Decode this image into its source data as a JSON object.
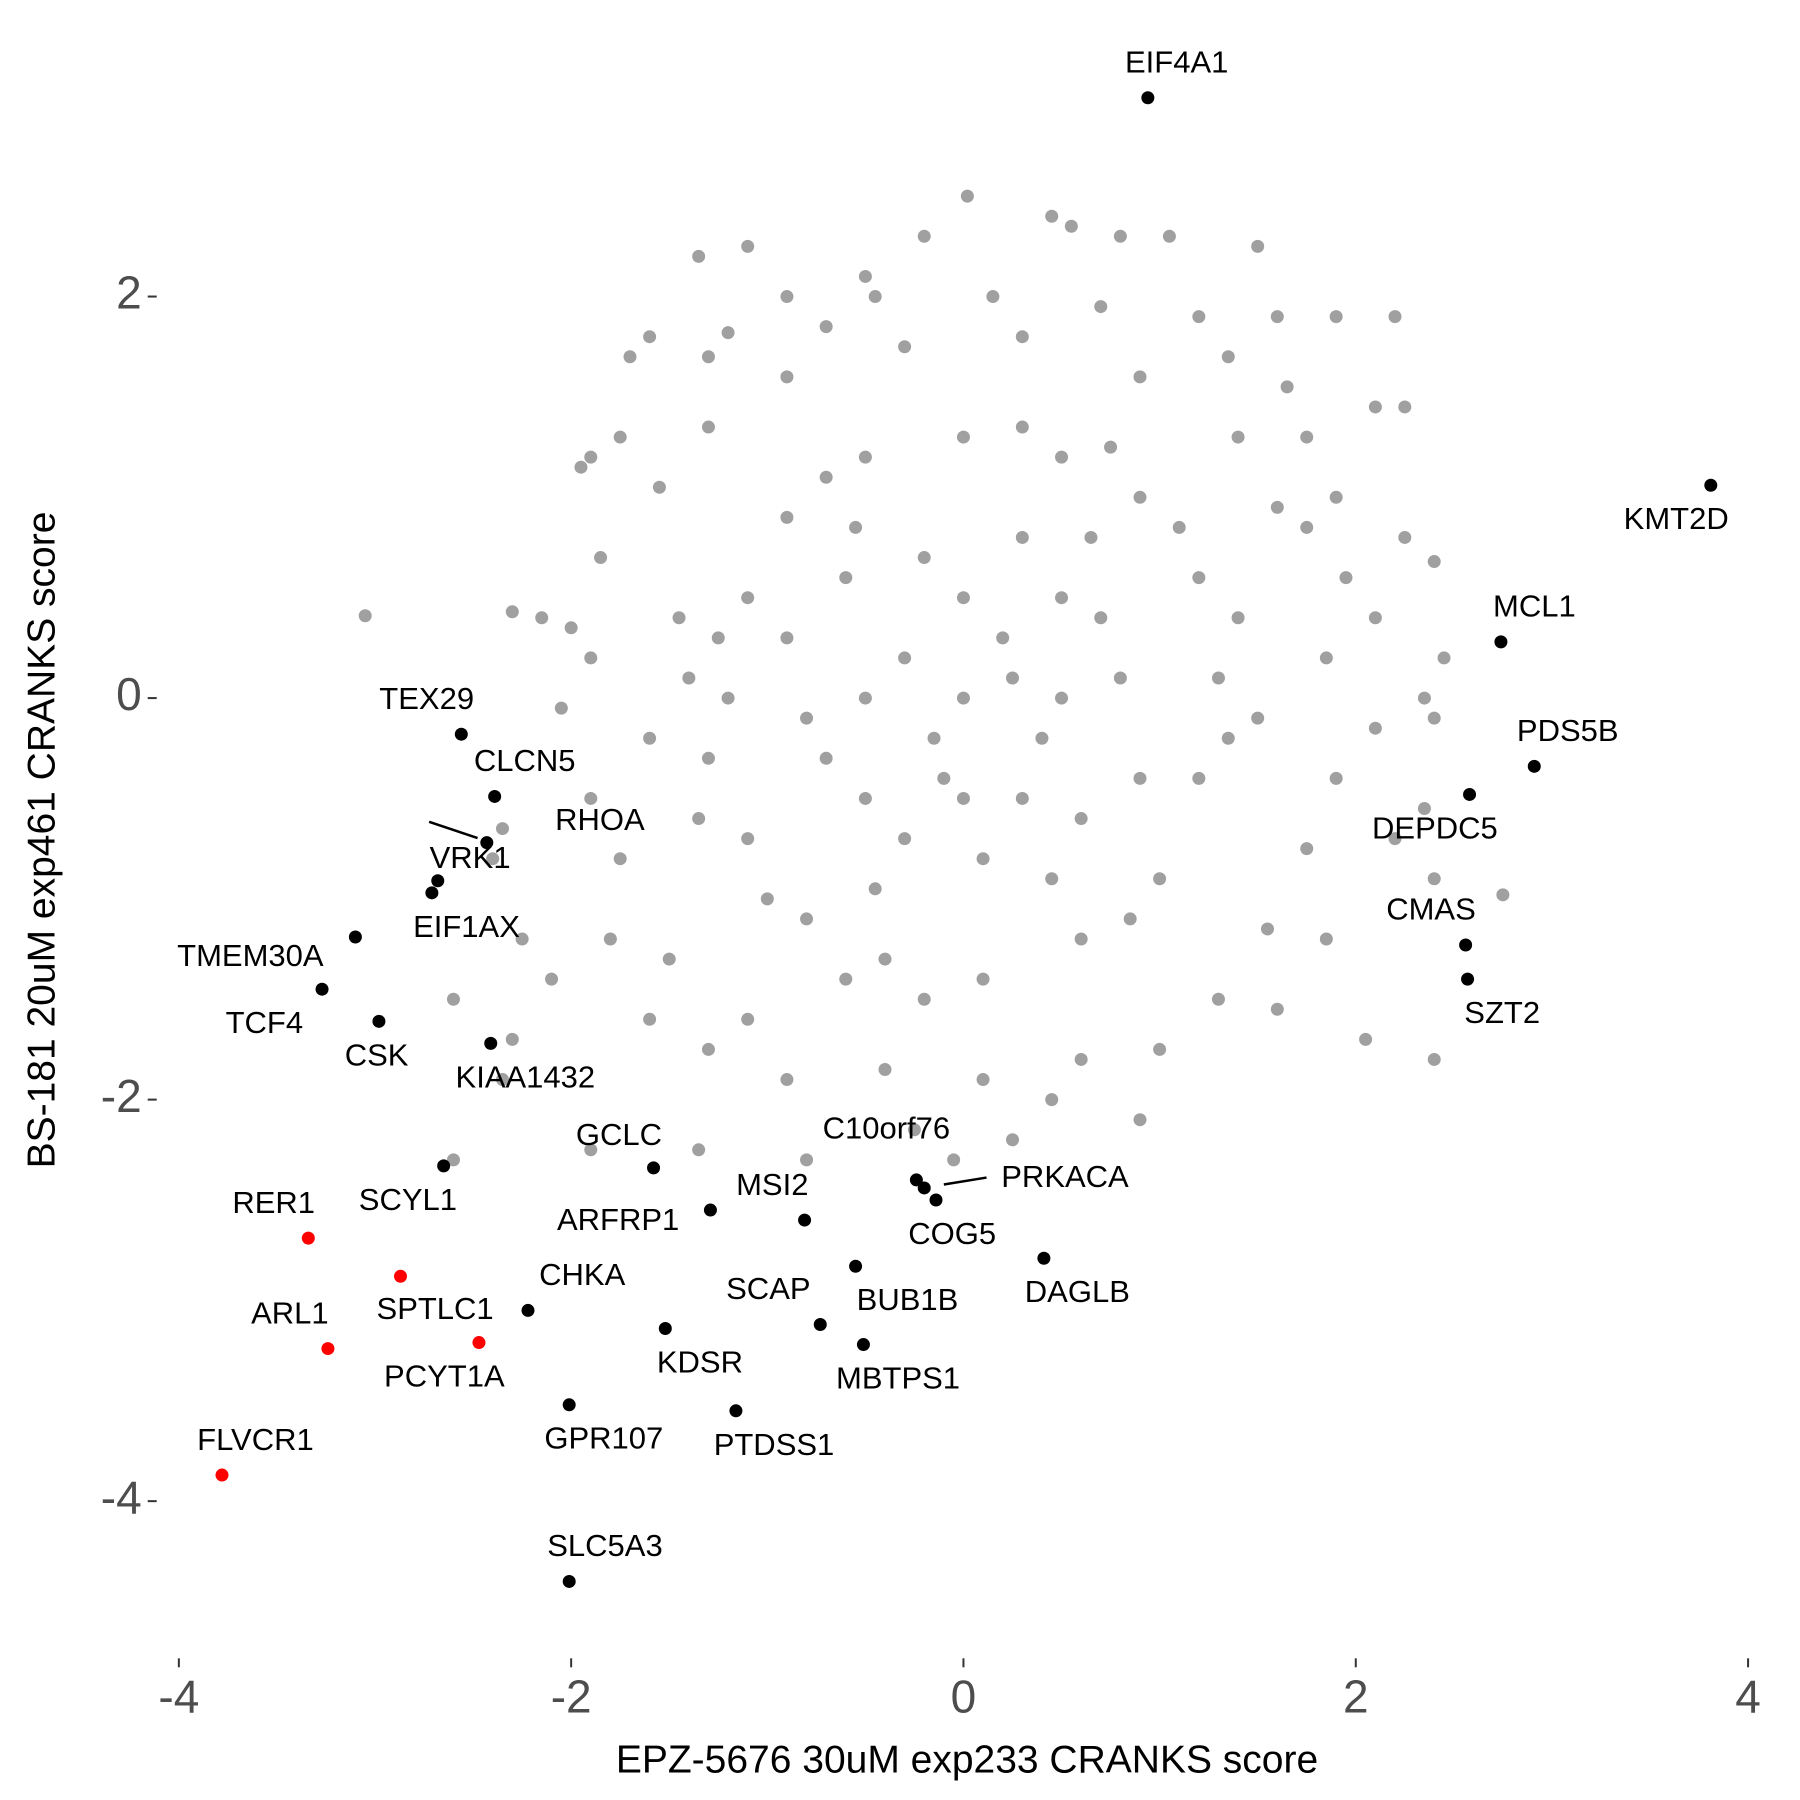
{
  "chart_data": {
    "type": "scatter",
    "x_label": "EPZ-5676 30uM exp233 CRANKS score",
    "y_label": "BS-181 20uM exp461 CRANKS score",
    "xlim": [
      -4.25,
      4.2
    ],
    "ylim": [
      -4.6,
      3.3
    ],
    "xticks": [
      -4,
      -2,
      0,
      2,
      4
    ],
    "yticks": [
      -4,
      -2,
      0,
      2
    ],
    "grid": false,
    "series": [
      {
        "color": "#a0a0a0",
        "x": [
          -3.05,
          0.02,
          -1.1,
          -1.35,
          0.45,
          0.55,
          0.8,
          1.05,
          1.5,
          -0.2,
          -0.9,
          -0.45,
          0.15,
          -1.6,
          -1.2,
          1.9,
          1.6,
          2.2,
          1.65,
          2.1,
          2.25,
          -1.9,
          -1.95,
          -1.75,
          2.25,
          2.4,
          2.45,
          2.1,
          2.35,
          2.4,
          2.1,
          2.2,
          2.35,
          2.4,
          2.75,
          2.05,
          2.4,
          1.6,
          1.85,
          0.9,
          0.45,
          0.25,
          -0.05,
          -0.25,
          -0.8,
          -1.35,
          -1.9,
          -2.6,
          -2.35,
          -2.6,
          -2.3,
          -2.1,
          -2.25,
          -2.35,
          -2.4,
          -2.3,
          -2.15,
          -2.0,
          -1.9,
          -2.05,
          -1.9,
          -1.75,
          -1.8,
          -1.6,
          -1.3,
          -1.7,
          -1.3,
          -0.5,
          0.7,
          1.35,
          1.2,
          -0.7,
          1.75,
          1.9,
          1.75,
          1.95,
          1.85,
          1.9,
          1.75,
          1.55,
          1.3,
          1.0,
          0.6,
          0.1,
          -0.4,
          -0.9,
          -1.1,
          -1.5,
          -1.85,
          -1.55,
          -1.3,
          -0.9,
          -0.3,
          0.3,
          0.9,
          1.4,
          1.6,
          1.5,
          -1.6,
          -1.45,
          -1.2,
          -1.1,
          -0.9,
          -0.5,
          0.0,
          0.5,
          0.9,
          1.2,
          1.3,
          1.2,
          1.0,
          0.6,
          0.1,
          -0.4,
          -0.8,
          -1.1,
          -1.3,
          -1.25,
          -0.7,
          0.3,
          0.75,
          1.1,
          1.35,
          0.85,
          -0.2,
          -0.6,
          -1.0,
          -1.35,
          1.4,
          -1.4,
          0,
          0.2,
          -0.3,
          0.4,
          -0.1,
          0.5,
          -0.5,
          0.6,
          -0.6,
          0.3,
          -0.2,
          0.8,
          -0.8,
          0.1,
          0.7,
          -0.7,
          0.3,
          -0.3,
          0.9,
          -0.9,
          0.0,
          0.5,
          -0.5,
          0.0,
          0.25,
          -0.15,
          0.65,
          -0.55,
          0.45,
          -0.45
        ],
        "values": [
          0.41,
          2.5,
          2.25,
          2.2,
          2.4,
          2.35,
          2.3,
          2.3,
          2.25,
          2.3,
          2.0,
          2.0,
          2.0,
          1.8,
          1.82,
          1.9,
          1.9,
          1.9,
          1.55,
          1.45,
          1.45,
          1.2,
          1.15,
          1.3,
          0.8,
          0.68,
          0.2,
          0.4,
          0.0,
          -0.1,
          -0.15,
          -0.7,
          -0.55,
          -0.9,
          -0.98,
          -1.7,
          -1.8,
          -1.55,
          -1.2,
          -2.1,
          -2.0,
          -2.2,
          -2.3,
          -2.15,
          -2.3,
          -2.25,
          -2.25,
          -2.3,
          -1.9,
          -1.5,
          -1.7,
          -1.4,
          -1.2,
          -0.65,
          -0.8,
          0.43,
          0.4,
          0.35,
          0.2,
          -0.05,
          -0.5,
          -0.8,
          -1.2,
          -1.6,
          -1.75,
          1.7,
          1.7,
          2.1,
          1.95,
          1.7,
          1.9,
          1.85,
          1.3,
          1.0,
          0.85,
          0.6,
          0.2,
          -0.4,
          -0.75,
          -1.15,
          -1.5,
          -1.75,
          -1.8,
          -1.9,
          -1.85,
          -1.9,
          -1.6,
          -1.3,
          0.7,
          1.05,
          1.35,
          1.6,
          1.75,
          1.8,
          1.6,
          1.3,
          0.95,
          -0.1,
          -0.2,
          0.4,
          0.0,
          0.5,
          0.9,
          1.2,
          1.3,
          1.2,
          1.0,
          0.6,
          0.1,
          -0.4,
          -0.9,
          -1.2,
          -1.4,
          -1.3,
          -1.1,
          -0.7,
          -0.3,
          0.3,
          1.1,
          1.35,
          1.25,
          0.85,
          -0.2,
          -1.1,
          -1.5,
          -1.4,
          -1.0,
          -0.6,
          0.4,
          0.1,
          0,
          0.3,
          0.2,
          -0.2,
          -0.4,
          0.5,
          -0.5,
          -0.6,
          0.6,
          0.8,
          0.7,
          0.1,
          -0.1,
          -0.8,
          0.4,
          -0.3,
          -0.5,
          -0.7,
          -0.4,
          0.3,
          0.5,
          0.0,
          0.0,
          -0.5,
          0.1,
          -0.2,
          0.8,
          0.85,
          -0.9,
          -0.95
        ]
      },
      {
        "color": "#000000",
        "labels": [
          "EIF4A1",
          "KMT2D",
          "MCL1",
          "PDS5B",
          "DEPDC5",
          "CMAS",
          "SZT2",
          "TEX29",
          "CLCN5",
          "RHOA",
          "VRK1",
          "EIF1AX",
          "TMEM30A",
          "TCF4",
          "CSK",
          "KIAA1432",
          "SCYL1",
          "GCLC",
          "C10orf76",
          "PRKACA",
          "COG5",
          "MSI2",
          "ARFRP1",
          "DAGLB",
          "CHKA",
          "SCAP",
          "BUB1B",
          "MBTPS1",
          "KDSR",
          "GPR107",
          "PTDSS1",
          "SLC5A3"
        ],
        "x": [
          0.94,
          3.81,
          2.74,
          2.91,
          2.58,
          2.56,
          2.57,
          -2.56,
          -2.39,
          -2.43,
          -2.68,
          -2.71,
          -3.1,
          -3.27,
          -2.98,
          -2.41,
          -2.65,
          -1.58,
          -0.24,
          -0.2,
          -0.14,
          -0.81,
          -1.29,
          0.41,
          -2.22,
          -0.73,
          -0.55,
          -0.51,
          -1.52,
          -2.01,
          -1.16,
          -2.01
        ],
        "values": [
          2.99,
          1.06,
          0.28,
          -0.34,
          -0.48,
          -1.23,
          -1.4,
          -0.18,
          -0.49,
          -0.72,
          -0.91,
          -0.97,
          -1.19,
          -1.45,
          -1.61,
          -1.72,
          -2.33,
          -2.34,
          -2.4,
          -2.44,
          -2.5,
          -2.6,
          -2.55,
          -2.79,
          -3.05,
          -3.12,
          -2.83,
          -3.22,
          -3.14,
          -3.52,
          -3.55,
          -4.4
        ]
      },
      {
        "color": "#ff0000",
        "labels": [
          "RER1",
          "SPTLC1",
          "ARL1",
          "PCYT1A",
          "FLVCR1"
        ],
        "x": [
          -3.34,
          -2.87,
          -3.24,
          -2.47,
          -3.78
        ],
        "values": [
          -2.69,
          -2.88,
          -3.24,
          -3.21,
          -3.87
        ]
      }
    ]
  }
}
